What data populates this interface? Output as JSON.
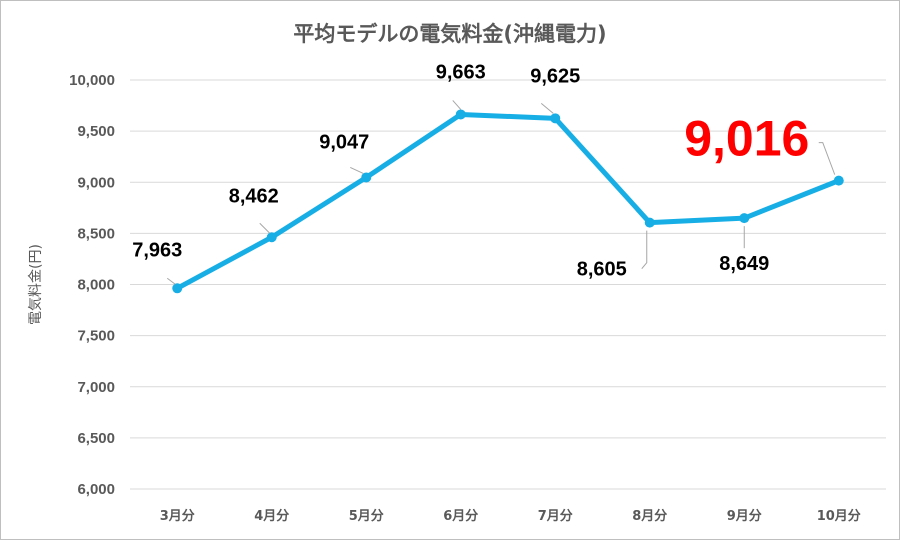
{
  "chart_data": {
    "type": "line",
    "title": "平均モデルの電気料金(沖縄電力)",
    "xlabel": "",
    "ylabel": "電気料金(円)",
    "categories": [
      "3月分",
      "4月分",
      "5月分",
      "6月分",
      "7月分",
      "8月分",
      "9月分",
      "10月分"
    ],
    "series": [
      {
        "values": [
          7963,
          8462,
          9047,
          9663,
          9625,
          8605,
          8649,
          9016
        ]
      }
    ],
    "data_labels": [
      "7,963",
      "8,462",
      "9,047",
      "9,663",
      "9,625",
      "8,605",
      "8,649",
      "9,016"
    ],
    "highlight_index": 7,
    "ylim": [
      6000,
      10000
    ],
    "yticks": [
      6000,
      6500,
      7000,
      7500,
      8000,
      8500,
      9000,
      9500,
      10000
    ],
    "ytick_labels": [
      "6,000",
      "6,500",
      "7,000",
      "7,500",
      "8,000",
      "8,500",
      "9,000",
      "9,500",
      "10,000"
    ],
    "grid": true,
    "legend": "none",
    "colors": {
      "line": "#17AEE6",
      "highlight_label": "#FF0000",
      "grid": "#D9D9D9",
      "leader": "#A6A6A6"
    }
  }
}
